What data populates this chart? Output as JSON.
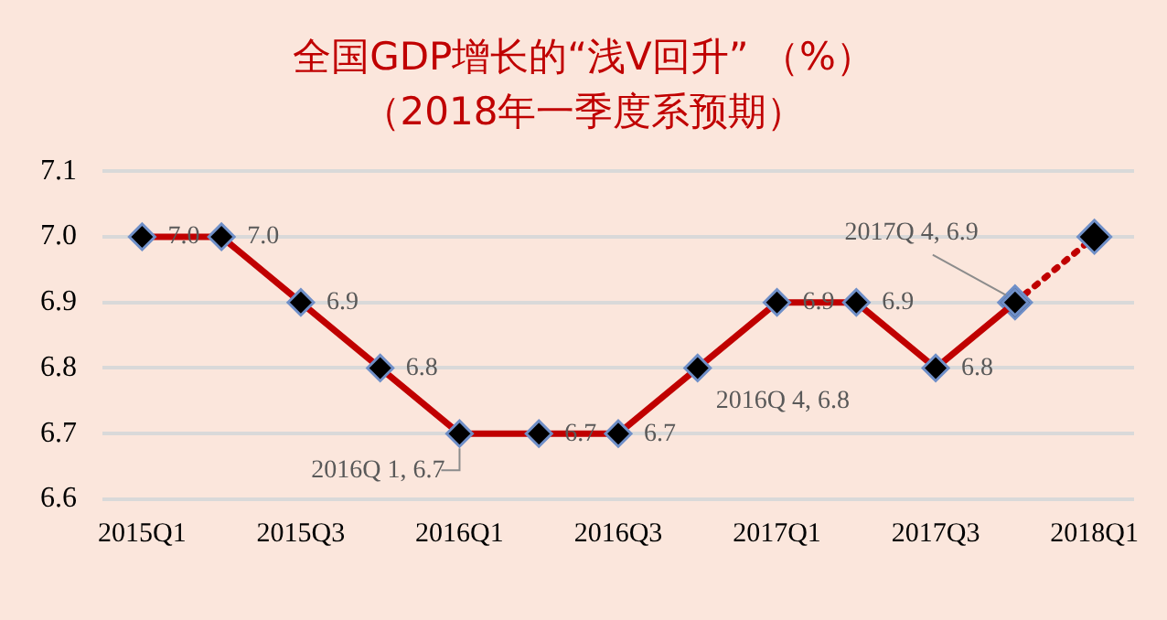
{
  "chart_data": {
    "type": "line",
    "title": "全国GDP增长的“浅V回升” （%）",
    "subtitle": "（2018年一季度系预期）",
    "categories": [
      "2015Q1",
      null,
      "2015Q3",
      null,
      "2016Q1",
      null,
      "2016Q3",
      null,
      "2017Q1",
      null,
      "2017Q3",
      null,
      "2018Q1"
    ],
    "series": [
      {
        "color": "#c00000",
        "line_style": "solid",
        "values": [
          7.0,
          7.0,
          6.9,
          6.8,
          6.7,
          6.7,
          6.7,
          6.8,
          6.9,
          6.9,
          6.8,
          6.9,
          null
        ],
        "value_labels": [
          "7.0",
          "7.0",
          "6.9",
          "6.8",
          "2016Q 1, 6.7",
          "6.7",
          "6.7",
          "2016Q 4, 6.8",
          "6.9",
          "6.9",
          "6.8",
          "2017Q 4, 6.9",
          null
        ]
      },
      {
        "color": "#c00000",
        "line_style": "dotted",
        "values": [
          null,
          null,
          null,
          null,
          null,
          null,
          null,
          null,
          null,
          null,
          null,
          6.9,
          7.0
        ]
      }
    ],
    "ylim": [
      6.6,
      7.1
    ],
    "yticks": [
      {
        "value": 6.6,
        "label": "6.6"
      },
      {
        "value": 6.7,
        "label": "6.7"
      },
      {
        "value": 6.8,
        "label": "6.8"
      },
      {
        "value": 6.9,
        "label": "6.9"
      },
      {
        "value": 7.0,
        "label": "7.0"
      },
      {
        "value": 7.1,
        "label": "7.1"
      }
    ],
    "grid": "y",
    "legend": false,
    "marker": "diamond"
  }
}
